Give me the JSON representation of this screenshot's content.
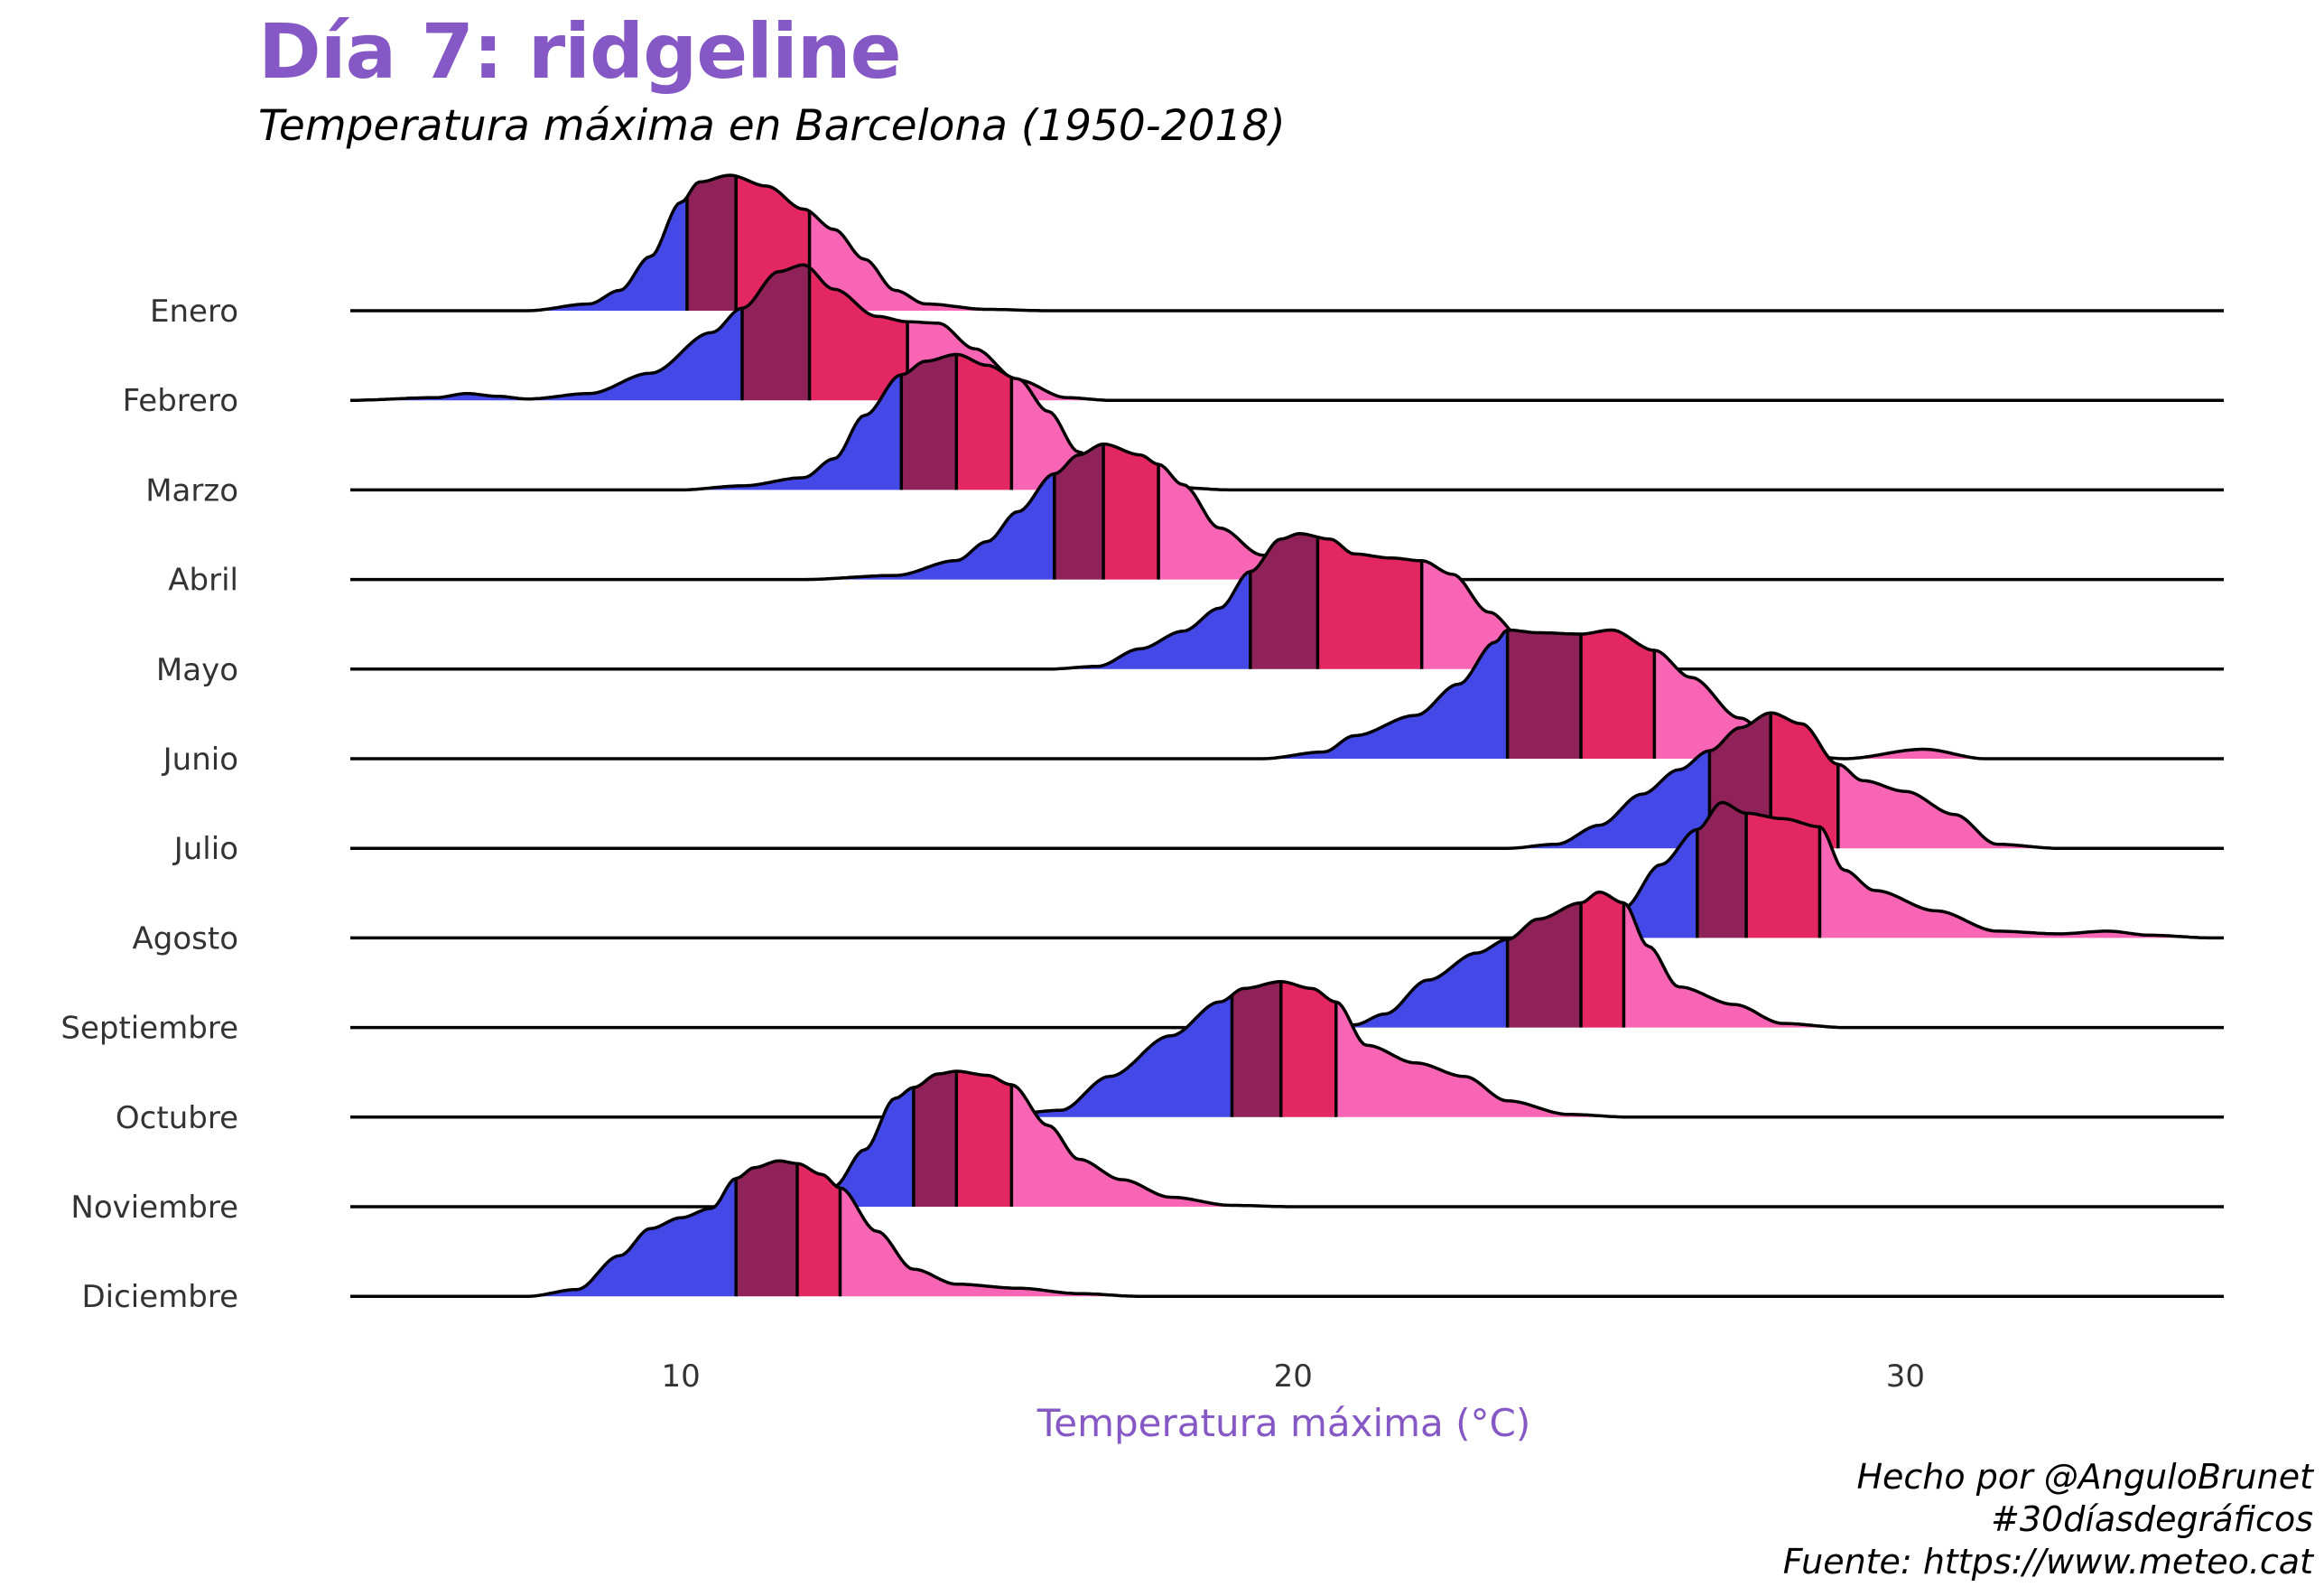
{
  "title": "Día 7: ridgeline",
  "subtitle": "Temperatura máxima en Barcelona (1950-2018)",
  "caption": {
    "author": "Hecho por @AnguloBrunet",
    "hashtag": "#30díasdegráficos",
    "source": "Fuente: https://www.meteo.cat"
  },
  "colors": {
    "title": "#8558c5",
    "q1": "#4348e6",
    "q2": "#90225a",
    "q3": "#e32762",
    "q4": "#f765b4",
    "line": "#000000",
    "axis_title": "#8558c5",
    "tick_text": "#333333"
  },
  "chart_data": {
    "type": "ridgeline",
    "xlabel": "Temperatura máxima (°C)",
    "ylabel": "",
    "xlim": [
      4.6,
      35.2
    ],
    "xticks": [
      10,
      20,
      30
    ],
    "categories": [
      "Enero",
      "Febrero",
      "Marzo",
      "Abril",
      "Mayo",
      "Junio",
      "Julio",
      "Agosto",
      "Septiembre",
      "Octubre",
      "Noviembre",
      "Diciembre"
    ],
    "fill": "quartiles",
    "series": [
      {
        "name": "Enero",
        "range": [
          4.6,
          35.2
        ],
        "quartiles": [
          10.1,
          10.9,
          12.1
        ],
        "density": [
          [
            4.6,
            0
          ],
          [
            7.5,
            0
          ],
          [
            8.5,
            0.05
          ],
          [
            9.0,
            0.15
          ],
          [
            9.5,
            0.4
          ],
          [
            10.0,
            0.8
          ],
          [
            10.3,
            0.95
          ],
          [
            10.8,
            1.0
          ],
          [
            11.4,
            0.92
          ],
          [
            12.0,
            0.75
          ],
          [
            12.5,
            0.6
          ],
          [
            13.0,
            0.38
          ],
          [
            13.5,
            0.15
          ],
          [
            14.0,
            0.05
          ],
          [
            15.0,
            0.01
          ],
          [
            16.0,
            0
          ],
          [
            35.2,
            0
          ]
        ]
      },
      {
        "name": "Febrero",
        "range": [
          4.6,
          35.2
        ],
        "quartiles": [
          11.0,
          12.1,
          13.7
        ],
        "density": [
          [
            4.6,
            0
          ],
          [
            6.0,
            0.02
          ],
          [
            6.5,
            0.05
          ],
          [
            7.0,
            0.03
          ],
          [
            7.5,
            0.01
          ],
          [
            8.5,
            0.05
          ],
          [
            9.5,
            0.2
          ],
          [
            10.5,
            0.5
          ],
          [
            11.0,
            0.68
          ],
          [
            11.6,
            0.95
          ],
          [
            12.0,
            1.0
          ],
          [
            12.5,
            0.82
          ],
          [
            13.2,
            0.62
          ],
          [
            13.7,
            0.58
          ],
          [
            14.2,
            0.57
          ],
          [
            14.8,
            0.38
          ],
          [
            15.5,
            0.15
          ],
          [
            16.3,
            0.02
          ],
          [
            17.0,
            0
          ],
          [
            35.2,
            0
          ]
        ]
      },
      {
        "name": "Marzo",
        "range": [
          4.6,
          35.2
        ],
        "quartiles": [
          13.6,
          14.5,
          15.4
        ],
        "density": [
          [
            4.6,
            0
          ],
          [
            10.0,
            0
          ],
          [
            11.0,
            0.03
          ],
          [
            12.0,
            0.09
          ],
          [
            12.5,
            0.23
          ],
          [
            13.0,
            0.55
          ],
          [
            13.6,
            0.85
          ],
          [
            14.0,
            0.95
          ],
          [
            14.5,
            1.0
          ],
          [
            15.0,
            0.92
          ],
          [
            15.5,
            0.82
          ],
          [
            16.0,
            0.58
          ],
          [
            16.5,
            0.28
          ],
          [
            17.0,
            0.09
          ],
          [
            18.0,
            0.02
          ],
          [
            19.0,
            0
          ],
          [
            35.2,
            0
          ]
        ]
      },
      {
        "name": "Abril",
        "range": [
          4.6,
          35.2
        ],
        "quartiles": [
          16.1,
          16.9,
          17.8
        ],
        "density": [
          [
            4.6,
            0
          ],
          [
            12.0,
            0
          ],
          [
            13.5,
            0.03
          ],
          [
            14.5,
            0.14
          ],
          [
            15.0,
            0.28
          ],
          [
            15.5,
            0.5
          ],
          [
            16.1,
            0.78
          ],
          [
            16.5,
            0.92
          ],
          [
            16.9,
            1.0
          ],
          [
            17.5,
            0.92
          ],
          [
            17.8,
            0.85
          ],
          [
            18.2,
            0.7
          ],
          [
            18.8,
            0.38
          ],
          [
            19.5,
            0.18
          ],
          [
            20.2,
            0.04
          ],
          [
            21.0,
            0
          ],
          [
            35.2,
            0
          ]
        ]
      },
      {
        "name": "Mayo",
        "range": [
          4.6,
          35.2
        ],
        "quartiles": [
          19.3,
          20.4,
          22.1
        ],
        "density": [
          [
            4.6,
            0
          ],
          [
            16.0,
            0
          ],
          [
            16.8,
            0.02
          ],
          [
            17.5,
            0.15
          ],
          [
            18.2,
            0.28
          ],
          [
            18.8,
            0.45
          ],
          [
            19.3,
            0.72
          ],
          [
            19.8,
            0.96
          ],
          [
            20.1,
            1.0
          ],
          [
            20.6,
            0.96
          ],
          [
            21.0,
            0.85
          ],
          [
            21.6,
            0.82
          ],
          [
            22.1,
            0.8
          ],
          [
            22.6,
            0.7
          ],
          [
            23.2,
            0.42
          ],
          [
            23.8,
            0.2
          ],
          [
            24.5,
            0.03
          ],
          [
            25.0,
            0
          ],
          [
            35.2,
            0
          ]
        ]
      },
      {
        "name": "Junio",
        "range": [
          4.6,
          35.2
        ],
        "quartiles": [
          23.5,
          24.7,
          25.9
        ],
        "density": [
          [
            4.6,
            0
          ],
          [
            19.5,
            0
          ],
          [
            20.5,
            0.05
          ],
          [
            21.0,
            0.17
          ],
          [
            22.0,
            0.32
          ],
          [
            22.7,
            0.55
          ],
          [
            23.3,
            0.86
          ],
          [
            23.5,
            0.95
          ],
          [
            24.0,
            0.93
          ],
          [
            24.7,
            0.92
          ],
          [
            25.2,
            0.95
          ],
          [
            25.9,
            0.8
          ],
          [
            26.5,
            0.6
          ],
          [
            27.3,
            0.3
          ],
          [
            28.0,
            0.05
          ],
          [
            29.0,
            0
          ],
          [
            30.3,
            0.07
          ],
          [
            31.3,
            0
          ],
          [
            35.2,
            0
          ]
        ]
      },
      {
        "name": "Julio",
        "range": [
          4.6,
          35.2
        ],
        "quartiles": [
          26.8,
          27.8,
          28.9
        ],
        "density": [
          [
            4.6,
            0
          ],
          [
            23.5,
            0
          ],
          [
            24.3,
            0.03
          ],
          [
            25.0,
            0.17
          ],
          [
            25.7,
            0.4
          ],
          [
            26.3,
            0.58
          ],
          [
            26.8,
            0.72
          ],
          [
            27.3,
            0.89
          ],
          [
            27.8,
            1.0
          ],
          [
            28.3,
            0.92
          ],
          [
            28.9,
            0.62
          ],
          [
            29.3,
            0.5
          ],
          [
            30.0,
            0.42
          ],
          [
            30.8,
            0.25
          ],
          [
            31.5,
            0.03
          ],
          [
            32.5,
            0
          ],
          [
            35.2,
            0
          ]
        ]
      },
      {
        "name": "Agosto",
        "range": [
          4.6,
          35.2
        ],
        "quartiles": [
          26.6,
          27.4,
          28.6
        ],
        "density": [
          [
            4.6,
            0
          ],
          [
            24.8,
            0
          ],
          [
            25.4,
            0.22
          ],
          [
            26.0,
            0.54
          ],
          [
            26.6,
            0.8
          ],
          [
            27.0,
            1.0
          ],
          [
            27.4,
            0.92
          ],
          [
            28.0,
            0.88
          ],
          [
            28.6,
            0.82
          ],
          [
            29.0,
            0.5
          ],
          [
            29.5,
            0.35
          ],
          [
            30.5,
            0.2
          ],
          [
            31.5,
            0.05
          ],
          [
            32.5,
            0.03
          ],
          [
            33.3,
            0.05
          ],
          [
            34.0,
            0.02
          ],
          [
            35.0,
            0
          ],
          [
            35.2,
            0
          ]
        ]
      },
      {
        "name": "Septiembre",
        "range": [
          4.6,
          35.2
        ],
        "quartiles": [
          23.5,
          24.7,
          25.4
        ],
        "density": [
          [
            4.6,
            0
          ],
          [
            20.0,
            0
          ],
          [
            21.0,
            0.02
          ],
          [
            21.5,
            0.1
          ],
          [
            22.2,
            0.35
          ],
          [
            23.0,
            0.55
          ],
          [
            23.5,
            0.65
          ],
          [
            24.0,
            0.8
          ],
          [
            24.7,
            0.92
          ],
          [
            25.0,
            1.0
          ],
          [
            25.4,
            0.92
          ],
          [
            25.8,
            0.6
          ],
          [
            26.3,
            0.3
          ],
          [
            27.2,
            0.17
          ],
          [
            28.0,
            0.03
          ],
          [
            29.0,
            0
          ],
          [
            35.2,
            0
          ]
        ]
      },
      {
        "name": "Octubre",
        "range": [
          4.6,
          35.2
        ],
        "quartiles": [
          19.0,
          19.8,
          20.7
        ],
        "density": [
          [
            4.6,
            0
          ],
          [
            15.0,
            0
          ],
          [
            16.2,
            0.05
          ],
          [
            17.0,
            0.3
          ],
          [
            18.0,
            0.6
          ],
          [
            18.8,
            0.85
          ],
          [
            19.2,
            0.95
          ],
          [
            19.8,
            1.0
          ],
          [
            20.3,
            0.95
          ],
          [
            20.7,
            0.85
          ],
          [
            21.2,
            0.53
          ],
          [
            22.0,
            0.4
          ],
          [
            22.8,
            0.3
          ],
          [
            23.5,
            0.12
          ],
          [
            24.5,
            0.02
          ],
          [
            25.5,
            0
          ],
          [
            35.2,
            0
          ]
        ]
      },
      {
        "name": "Noviembre",
        "range": [
          4.6,
          35.2
        ],
        "quartiles": [
          13.8,
          14.5,
          15.4
        ],
        "density": [
          [
            4.6,
            0
          ],
          [
            12.0,
            0
          ],
          [
            12.5,
            0.15
          ],
          [
            13.0,
            0.42
          ],
          [
            13.5,
            0.8
          ],
          [
            13.8,
            0.88
          ],
          [
            14.2,
            0.98
          ],
          [
            14.5,
            1.0
          ],
          [
            15.0,
            0.97
          ],
          [
            15.4,
            0.9
          ],
          [
            16.0,
            0.6
          ],
          [
            16.5,
            0.35
          ],
          [
            17.2,
            0.2
          ],
          [
            18.0,
            0.07
          ],
          [
            19.0,
            0.01
          ],
          [
            20.0,
            0
          ],
          [
            35.2,
            0
          ]
        ]
      },
      {
        "name": "Diciembre",
        "range": [
          4.6,
          35.2
        ],
        "quartiles": [
          10.9,
          11.9,
          12.6
        ],
        "density": [
          [
            4.6,
            0
          ],
          [
            7.5,
            0
          ],
          [
            8.3,
            0.05
          ],
          [
            9.0,
            0.3
          ],
          [
            9.5,
            0.5
          ],
          [
            10.0,
            0.58
          ],
          [
            10.5,
            0.65
          ],
          [
            10.9,
            0.87
          ],
          [
            11.2,
            0.95
          ],
          [
            11.6,
            1.0
          ],
          [
            11.9,
            0.98
          ],
          [
            12.3,
            0.9
          ],
          [
            12.6,
            0.8
          ],
          [
            13.2,
            0.48
          ],
          [
            13.8,
            0.2
          ],
          [
            14.5,
            0.09
          ],
          [
            15.5,
            0.06
          ],
          [
            16.5,
            0.02
          ],
          [
            17.5,
            0
          ],
          [
            35.2,
            0
          ]
        ]
      }
    ]
  }
}
